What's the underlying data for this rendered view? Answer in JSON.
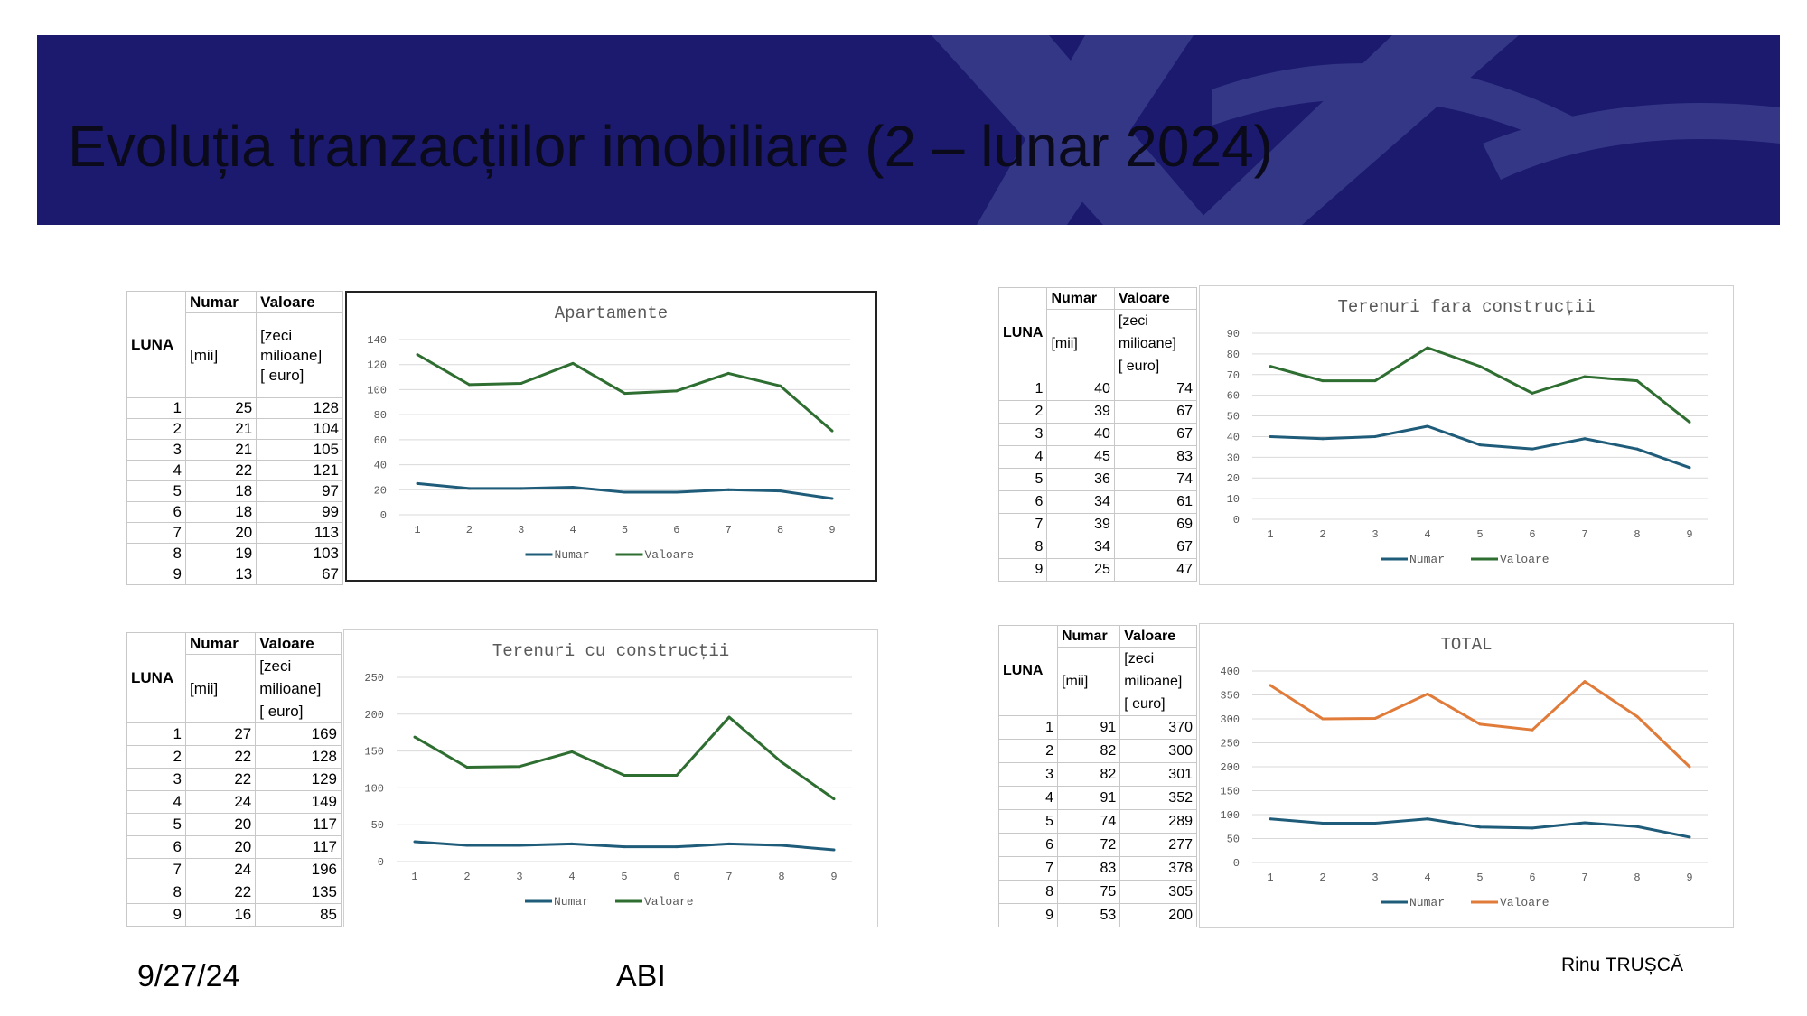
{
  "slide": {
    "title": "Evoluția tranzacțiilor imobiliare (2 – lunar 2024)",
    "footer_date": "9/27/24",
    "footer_center": "ABI",
    "footer_author": "Rinu TRUȘCĂ"
  },
  "colors": {
    "banner": "#1b1a6e",
    "numar": "#1f5c7a",
    "valoare_green": "#2e6e31",
    "valoare_orange": "#e07b39"
  },
  "tables": [
    {
      "h_luna": "LUNA",
      "h_numar": "Numar",
      "h_valoare": "Valoare",
      "u_numar": "[mii]",
      "u_valoare_1": "[zeci",
      "u_valoare_2": "milioane]",
      "u_valoare_3": "[ euro]",
      "rows": [
        {
          "luna": "1",
          "numar": "25",
          "valoare": "128"
        },
        {
          "luna": "2",
          "numar": "21",
          "valoare": "104"
        },
        {
          "luna": "3",
          "numar": "21",
          "valoare": "105"
        },
        {
          "luna": "4",
          "numar": "22",
          "valoare": "121"
        },
        {
          "luna": "5",
          "numar": "18",
          "valoare": "97"
        },
        {
          "luna": "6",
          "numar": "18",
          "valoare": "99"
        },
        {
          "luna": "7",
          "numar": "20",
          "valoare": "113"
        },
        {
          "luna": "8",
          "numar": "19",
          "valoare": "103"
        },
        {
          "luna": "9",
          "numar": "13",
          "valoare": "67"
        }
      ]
    },
    {
      "h_luna": "LUNA",
      "h_numar": "Numar",
      "h_valoare": "Valoare",
      "u_numar": "[mii]",
      "u_valoare_1": "[zeci",
      "u_valoare_2": "milioane]",
      "u_valoare_3": "[ euro]",
      "rows": [
        {
          "luna": "1",
          "numar": "40",
          "valoare": "74"
        },
        {
          "luna": "2",
          "numar": "39",
          "valoare": "67"
        },
        {
          "luna": "3",
          "numar": "40",
          "valoare": "67"
        },
        {
          "luna": "4",
          "numar": "45",
          "valoare": "83"
        },
        {
          "luna": "5",
          "numar": "36",
          "valoare": "74"
        },
        {
          "luna": "6",
          "numar": "34",
          "valoare": "61"
        },
        {
          "luna": "7",
          "numar": "39",
          "valoare": "69"
        },
        {
          "luna": "8",
          "numar": "34",
          "valoare": "67"
        },
        {
          "luna": "9",
          "numar": "25",
          "valoare": "47"
        }
      ]
    },
    {
      "h_luna": "LUNA",
      "h_numar": "Numar",
      "h_valoare": "Valoare",
      "u_numar": "[mii]",
      "u_valoare_1": "[zeci",
      "u_valoare_2": "milioane]",
      "u_valoare_3": "[ euro]",
      "rows": [
        {
          "luna": "1",
          "numar": "27",
          "valoare": "169"
        },
        {
          "luna": "2",
          "numar": "22",
          "valoare": "128"
        },
        {
          "luna": "3",
          "numar": "22",
          "valoare": "129"
        },
        {
          "luna": "4",
          "numar": "24",
          "valoare": "149"
        },
        {
          "luna": "5",
          "numar": "20",
          "valoare": "117"
        },
        {
          "luna": "6",
          "numar": "20",
          "valoare": "117"
        },
        {
          "luna": "7",
          "numar": "24",
          "valoare": "196"
        },
        {
          "luna": "8",
          "numar": "22",
          "valoare": "135"
        },
        {
          "luna": "9",
          "numar": "16",
          "valoare": "85"
        }
      ]
    },
    {
      "h_luna": "LUNA",
      "h_numar": "Numar",
      "h_valoare": "Valoare",
      "u_numar": "[mii]",
      "u_valoare_1": "[zeci",
      "u_valoare_2": "milioane]",
      "u_valoare_3": "[ euro]",
      "rows": [
        {
          "luna": "1",
          "numar": "91",
          "valoare": "370"
        },
        {
          "luna": "2",
          "numar": "82",
          "valoare": "300"
        },
        {
          "luna": "3",
          "numar": "82",
          "valoare": "301"
        },
        {
          "luna": "4",
          "numar": "91",
          "valoare": "352"
        },
        {
          "luna": "5",
          "numar": "74",
          "valoare": "289"
        },
        {
          "luna": "6",
          "numar": "72",
          "valoare": "277"
        },
        {
          "luna": "7",
          "numar": "83",
          "valoare": "378"
        },
        {
          "luna": "8",
          "numar": "75",
          "valoare": "305"
        },
        {
          "luna": "9",
          "numar": "53",
          "valoare": "200"
        }
      ]
    }
  ],
  "chart_data": [
    {
      "type": "line",
      "title": "Apartamente",
      "x": [
        1,
        2,
        3,
        4,
        5,
        6,
        7,
        8,
        9
      ],
      "ylim": [
        0,
        140
      ],
      "yticks": [
        0,
        20,
        40,
        60,
        80,
        100,
        120,
        140
      ],
      "grid": true,
      "legend": "bottom",
      "series": [
        {
          "name": "Numar",
          "values": [
            25,
            21,
            21,
            22,
            18,
            18,
            20,
            19,
            13
          ],
          "color": "#1f5c7a"
        },
        {
          "name": "Valoare",
          "values": [
            128,
            104,
            105,
            121,
            97,
            99,
            113,
            103,
            67
          ],
          "color": "#2e6e31"
        }
      ]
    },
    {
      "type": "line",
      "title": "Terenuri fara construcții",
      "x": [
        1,
        2,
        3,
        4,
        5,
        6,
        7,
        8,
        9
      ],
      "ylim": [
        0,
        90
      ],
      "yticks": [
        0,
        10,
        20,
        30,
        40,
        50,
        60,
        70,
        80,
        90
      ],
      "grid": true,
      "legend": "bottom",
      "series": [
        {
          "name": "Numar",
          "values": [
            40,
            39,
            40,
            45,
            36,
            34,
            39,
            34,
            25
          ],
          "color": "#1f5c7a"
        },
        {
          "name": "Valoare",
          "values": [
            74,
            67,
            67,
            83,
            74,
            61,
            69,
            67,
            47
          ],
          "color": "#2e6e31"
        }
      ]
    },
    {
      "type": "line",
      "title": "Terenuri cu construcții",
      "x": [
        1,
        2,
        3,
        4,
        5,
        6,
        7,
        8,
        9
      ],
      "ylim": [
        0,
        250
      ],
      "yticks": [
        0,
        50,
        100,
        150,
        200,
        250
      ],
      "grid": true,
      "legend": "bottom",
      "series": [
        {
          "name": "Numar",
          "values": [
            27,
            22,
            22,
            24,
            20,
            20,
            24,
            22,
            16
          ],
          "color": "#1f5c7a"
        },
        {
          "name": "Valoare",
          "values": [
            169,
            128,
            129,
            149,
            117,
            117,
            196,
            135,
            85
          ],
          "color": "#2e6e31"
        }
      ]
    },
    {
      "type": "line",
      "title": "TOTAL",
      "x": [
        1,
        2,
        3,
        4,
        5,
        6,
        7,
        8,
        9
      ],
      "ylim": [
        0,
        400
      ],
      "yticks": [
        0,
        50,
        100,
        150,
        200,
        250,
        300,
        350,
        400
      ],
      "grid": true,
      "legend": "bottom",
      "series": [
        {
          "name": "Numar",
          "values": [
            91,
            82,
            82,
            91,
            74,
            72,
            83,
            75,
            53
          ],
          "color": "#1f5c7a"
        },
        {
          "name": "Valoare",
          "values": [
            370,
            300,
            301,
            352,
            289,
            277,
            378,
            305,
            200
          ],
          "color": "#e07b39"
        }
      ]
    }
  ]
}
